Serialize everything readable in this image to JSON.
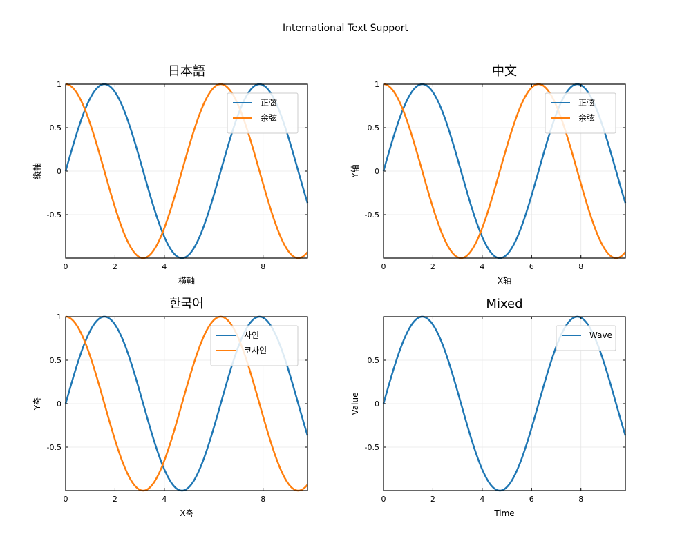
{
  "figure": {
    "title": "International Text Support"
  },
  "colors": {
    "series_1": "#1f77b4",
    "series_2": "#ff7f0e"
  },
  "chart_data": [
    {
      "type": "line",
      "title": "日本語",
      "xlabel": "横軸",
      "ylabel": "縦軸",
      "xlim": [
        0,
        9.8
      ],
      "ylim": [
        -1,
        1
      ],
      "xticks": [
        0,
        2,
        4,
        8
      ],
      "xtick_labels": [
        "0",
        "2",
        "4",
        "8"
      ],
      "yticks": [
        -0.5,
        0,
        0.5,
        1
      ],
      "ytick_labels": [
        "-0.5",
        "0",
        "0.5",
        "1"
      ],
      "grid": true,
      "legend": "top-right",
      "series": [
        {
          "name": "正弦",
          "function": "sin",
          "color": "#1f77b4"
        },
        {
          "name": "余弦",
          "function": "cos",
          "color": "#ff7f0e"
        }
      ]
    },
    {
      "type": "line",
      "title": "中文",
      "xlabel": "X轴",
      "ylabel": "Y轴",
      "xlim": [
        0,
        9.8
      ],
      "ylim": [
        -1,
        1
      ],
      "xticks": [
        0,
        2,
        4,
        6,
        8
      ],
      "xtick_labels": [
        "0",
        "2",
        "4",
        "6",
        "8"
      ],
      "yticks": [
        -0.5,
        0,
        0.5,
        1
      ],
      "ytick_labels": [
        "-0.5",
        "0",
        "0.5",
        "1"
      ],
      "grid": true,
      "legend": "top-right",
      "series": [
        {
          "name": "正弦",
          "function": "sin",
          "color": "#1f77b4"
        },
        {
          "name": "余弦",
          "function": "cos",
          "color": "#ff7f0e"
        }
      ]
    },
    {
      "type": "line",
      "title": "한국어",
      "xlabel": "X축",
      "ylabel": "Y축",
      "xlim": [
        0,
        9.8
      ],
      "ylim": [
        -1,
        1
      ],
      "xticks": [
        0,
        2,
        4,
        8
      ],
      "xtick_labels": [
        "0",
        "2",
        "4",
        "8"
      ],
      "yticks": [
        -0.5,
        0,
        0.5,
        1
      ],
      "ytick_labels": [
        "-0.5",
        "0",
        "0.5",
        "1"
      ],
      "grid": true,
      "legend": "top-right",
      "series": [
        {
          "name": "사인",
          "function": "sin",
          "color": "#1f77b4"
        },
        {
          "name": "코사인",
          "function": "cos",
          "color": "#ff7f0e"
        }
      ]
    },
    {
      "type": "line",
      "title": "Mixed",
      "xlabel": "Time",
      "ylabel": "Value",
      "xlim": [
        0,
        9.8
      ],
      "ylim": [
        -1,
        1
      ],
      "xticks": [
        0,
        2,
        4,
        6,
        8
      ],
      "xtick_labels": [
        "0",
        "2",
        "4",
        "6",
        "8"
      ],
      "yticks": [
        -0.5,
        0,
        0.5
      ],
      "ytick_labels": [
        "-0.5",
        "0",
        "0.5"
      ],
      "grid": true,
      "legend": "top-right",
      "series": [
        {
          "name": "Wave",
          "function": "sin",
          "color": "#1f77b4"
        }
      ]
    }
  ]
}
